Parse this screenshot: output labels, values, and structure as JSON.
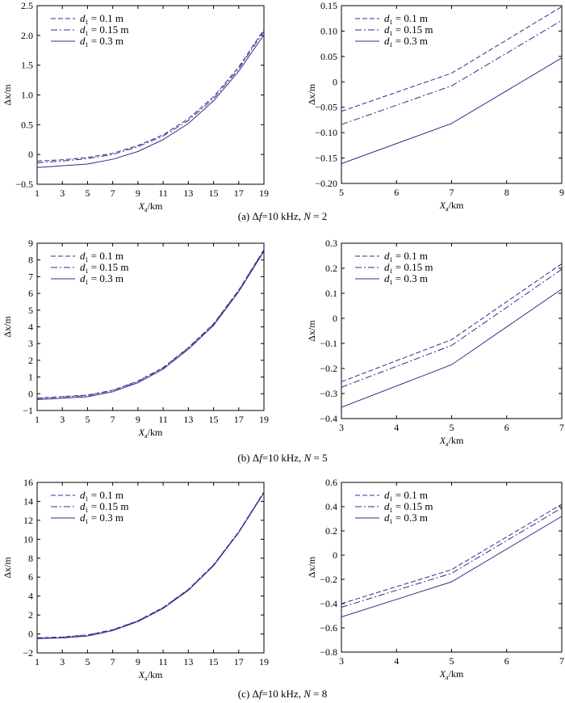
{
  "colors": {
    "series": "#2e2e8c",
    "axis": "#000000"
  },
  "chart_data": [
    {
      "id": "a-left",
      "type": "line",
      "xlabel_main": "X",
      "xlabel_sub": "a",
      "xlabel_unit": "/km",
      "ylabel": "Δx/m",
      "xlim": [
        1,
        19
      ],
      "ylim": [
        -0.5,
        2.5
      ],
      "xticks": [
        1,
        3,
        5,
        7,
        9,
        11,
        13,
        15,
        17,
        19
      ],
      "xtick_labels": [
        "1",
        "3",
        "5",
        "7",
        "9",
        "11",
        "13",
        "15",
        "17",
        "19"
      ],
      "yticks": [
        -0.5,
        0,
        0.5,
        1,
        1.5,
        2,
        2.5
      ],
      "ytick_labels": [
        "−0.5",
        "0",
        "0.5",
        "1.0",
        "1.5",
        "2.0",
        "2.5"
      ],
      "legend_position": "top-left",
      "x": [
        1,
        3,
        5,
        7,
        9,
        11,
        13,
        15,
        17,
        19
      ],
      "series": [
        {
          "name": "d1 = 0.1 m",
          "sym": "d",
          "sub": "1",
          "rest": " = 0.1 m",
          "dash": "dashed",
          "values": [
            -0.11,
            -0.09,
            -0.05,
            0.02,
            0.15,
            0.33,
            0.6,
            0.97,
            1.47,
            2.1
          ]
        },
        {
          "name": "d1 = 0.15 m",
          "sym": "d",
          "sub": "1",
          "rest": " = 0.15 m",
          "dash": "dashdot",
          "values": [
            -0.14,
            -0.11,
            -0.07,
            0.0,
            0.13,
            0.31,
            0.57,
            0.94,
            1.44,
            2.07
          ]
        },
        {
          "name": "d1 = 0.3 m",
          "sym": "d",
          "sub": "1",
          "rest": " = 0.3 m",
          "dash": "solid",
          "values": [
            -0.22,
            -0.19,
            -0.16,
            -0.08,
            0.05,
            0.25,
            0.52,
            0.9,
            1.4,
            2.01
          ]
        }
      ]
    },
    {
      "id": "a-right",
      "type": "line",
      "xlabel_main": "X",
      "xlabel_sub": "a",
      "xlabel_unit": "/km",
      "ylabel": "Δx/m",
      "xlim": [
        5,
        9
      ],
      "ylim": [
        -0.2,
        0.15
      ],
      "xticks": [
        5,
        6,
        7,
        8,
        9
      ],
      "xtick_labels": [
        "5",
        "6",
        "7",
        "8",
        "9"
      ],
      "yticks": [
        -0.2,
        -0.15,
        -0.1,
        -0.05,
        0,
        0.05,
        0.1,
        0.15
      ],
      "ytick_labels": [
        "−0.20",
        "−0.15",
        "−0.10",
        "−0.05",
        "0",
        "0.05",
        "0.10",
        "0.15"
      ],
      "legend_position": "top-left",
      "x": [
        5,
        7,
        9
      ],
      "series": [
        {
          "name": "d1 = 0.1 m",
          "sym": "d",
          "sub": "1",
          "rest": " = 0.1 m",
          "dash": "dashed",
          "values": [
            -0.058,
            0.017,
            0.148
          ]
        },
        {
          "name": "d1 = 0.15 m",
          "sym": "d",
          "sub": "1",
          "rest": " = 0.15 m",
          "dash": "dashdot",
          "values": [
            -0.084,
            -0.008,
            0.121
          ]
        },
        {
          "name": "d1 = 0.3 m",
          "sym": "d",
          "sub": "1",
          "rest": " = 0.3 m",
          "dash": "solid",
          "values": [
            -0.161,
            -0.082,
            0.047
          ]
        }
      ]
    },
    {
      "id": "b-left",
      "type": "line",
      "xlabel_main": "X",
      "xlabel_sub": "a",
      "xlabel_unit": "/km",
      "ylabel": "Δx/m",
      "xlim": [
        1,
        19
      ],
      "ylim": [
        -1,
        9
      ],
      "xticks": [
        1,
        3,
        5,
        7,
        9,
        11,
        13,
        15,
        17,
        19
      ],
      "xtick_labels": [
        "1",
        "3",
        "5",
        "7",
        "9",
        "11",
        "13",
        "15",
        "17",
        "19"
      ],
      "yticks": [
        -1,
        0,
        1,
        2,
        3,
        4,
        5,
        6,
        7,
        8,
        9
      ],
      "ytick_labels": [
        "−1",
        "0",
        "1",
        "2",
        "3",
        "4",
        "5",
        "6",
        "7",
        "8",
        "9"
      ],
      "legend_position": "top-left",
      "x": [
        1,
        3,
        5,
        7,
        9,
        11,
        13,
        15,
        17,
        19
      ],
      "series": [
        {
          "name": "d1 = 0.1 m",
          "sym": "d",
          "sub": "1",
          "rest": " = 0.1 m",
          "dash": "dashed",
          "values": [
            -0.26,
            -0.17,
            -0.08,
            0.21,
            0.76,
            1.57,
            2.76,
            4.18,
            6.2,
            8.62
          ]
        },
        {
          "name": "d1 = 0.15 m",
          "sym": "d",
          "sub": "1",
          "rest": " = 0.15 m",
          "dash": "dashdot",
          "values": [
            -0.28,
            -0.19,
            -0.11,
            0.19,
            0.73,
            1.54,
            2.73,
            4.15,
            6.17,
            8.59
          ]
        },
        {
          "name": "d1 = 0.3 m",
          "sym": "d",
          "sub": "1",
          "rest": " = 0.3 m",
          "dash": "solid",
          "values": [
            -0.35,
            -0.27,
            -0.18,
            0.12,
            0.66,
            1.47,
            2.66,
            4.08,
            6.1,
            8.52
          ]
        }
      ]
    },
    {
      "id": "b-right",
      "type": "line",
      "xlabel_main": "X",
      "xlabel_sub": "a",
      "xlabel_unit": "/km",
      "ylabel": "Δx/m",
      "xlim": [
        3,
        7
      ],
      "ylim": [
        -0.4,
        0.3
      ],
      "xticks": [
        3,
        4,
        5,
        6,
        7
      ],
      "xtick_labels": [
        "3",
        "4",
        "5",
        "6",
        "7"
      ],
      "yticks": [
        -0.4,
        -0.3,
        -0.2,
        -0.1,
        0,
        0.1,
        0.2,
        0.3
      ],
      "ytick_labels": [
        "−0.4",
        "−0.3",
        "−0.2",
        "−0.1",
        "0",
        "0.1",
        "0.2",
        "0.3"
      ],
      "legend_position": "top-left",
      "x": [
        3,
        5,
        7
      ],
      "series": [
        {
          "name": "d1 = 0.1 m",
          "sym": "d",
          "sub": "1",
          "rest": " = 0.1 m",
          "dash": "dashed",
          "values": [
            -0.253,
            -0.085,
            0.218
          ]
        },
        {
          "name": "d1 = 0.15 m",
          "sym": "d",
          "sub": "1",
          "rest": " = 0.15 m",
          "dash": "dashdot",
          "values": [
            -0.275,
            -0.108,
            0.196
          ]
        },
        {
          "name": "d1 = 0.3 m",
          "sym": "d",
          "sub": "1",
          "rest": " = 0.3 m",
          "dash": "solid",
          "values": [
            -0.355,
            -0.185,
            0.117
          ]
        }
      ]
    },
    {
      "id": "c-left",
      "type": "line",
      "xlabel_main": "X",
      "xlabel_sub": "a",
      "xlabel_unit": "/km",
      "ylabel": "Δx/m",
      "xlim": [
        1,
        19
      ],
      "ylim": [
        -2,
        16
      ],
      "xticks": [
        1,
        3,
        5,
        7,
        9,
        11,
        13,
        15,
        17,
        19
      ],
      "xtick_labels": [
        "1",
        "3",
        "5",
        "7",
        "9",
        "11",
        "13",
        "15",
        "17",
        "19"
      ],
      "yticks": [
        -2,
        0,
        2,
        4,
        6,
        8,
        10,
        12,
        14,
        16
      ],
      "ytick_labels": [
        "−2",
        "0",
        "2",
        "4",
        "6",
        "8",
        "10",
        "12",
        "14",
        "16"
      ],
      "legend_position": "top-left",
      "x": [
        1,
        3,
        5,
        7,
        9,
        11,
        13,
        15,
        17,
        19
      ],
      "series": [
        {
          "name": "d1 = 0.1 m",
          "sym": "d",
          "sub": "1",
          "rest": " = 0.1 m",
          "dash": "dashed",
          "values": [
            -0.4,
            -0.32,
            -0.1,
            0.45,
            1.4,
            2.8,
            4.7,
            7.3,
            10.8,
            15.0
          ]
        },
        {
          "name": "d1 = 0.15 m",
          "sym": "d",
          "sub": "1",
          "rest": " = 0.15 m",
          "dash": "dashdot",
          "values": [
            -0.43,
            -0.35,
            -0.13,
            0.42,
            1.37,
            2.77,
            4.67,
            7.27,
            10.77,
            14.97
          ]
        },
        {
          "name": "d1 = 0.3 m",
          "sym": "d",
          "sub": "1",
          "rest": " = 0.3 m",
          "dash": "solid",
          "values": [
            -0.5,
            -0.42,
            -0.22,
            0.35,
            1.3,
            2.7,
            4.6,
            7.2,
            10.7,
            14.9
          ]
        }
      ]
    },
    {
      "id": "c-right",
      "type": "line",
      "xlabel_main": "X",
      "xlabel_sub": "a",
      "xlabel_unit": "/km",
      "ylabel": "Δx/m",
      "xlim": [
        3,
        7
      ],
      "ylim": [
        -0.8,
        0.6
      ],
      "xticks": [
        3,
        4,
        5,
        6,
        7
      ],
      "xtick_labels": [
        "3",
        "4",
        "5",
        "6",
        "7"
      ],
      "yticks": [
        -0.8,
        -0.6,
        -0.4,
        -0.2,
        0,
        0.2,
        0.4,
        0.6
      ],
      "ytick_labels": [
        "−0.8",
        "−0.6",
        "−0.4",
        "−0.2",
        "0",
        "0.2",
        "0.4",
        "0.6"
      ],
      "legend_position": "top-left",
      "x": [
        3,
        5,
        7
      ],
      "series": [
        {
          "name": "d1 = 0.1 m",
          "sym": "d",
          "sub": "1",
          "rest": " = 0.1 m",
          "dash": "dashed",
          "values": [
            -0.4,
            -0.12,
            0.42
          ]
        },
        {
          "name": "d1 = 0.15 m",
          "sym": "d",
          "sub": "1",
          "rest": " = 0.15 m",
          "dash": "dashdot",
          "values": [
            -0.43,
            -0.15,
            0.39
          ]
        },
        {
          "name": "d1 = 0.3 m",
          "sym": "d",
          "sub": "1",
          "rest": " = 0.3 m",
          "dash": "solid",
          "values": [
            -0.51,
            -0.22,
            0.32
          ]
        }
      ]
    }
  ],
  "captions": [
    {
      "prefix": "(a) Δ",
      "f": "f",
      "mid": "=10 kHz,  ",
      "n": "N",
      "suffix": " = 2"
    },
    {
      "prefix": "(b) Δ",
      "f": "f",
      "mid": "=10 kHz,  ",
      "n": "N",
      "suffix": " = 5"
    },
    {
      "prefix": "(c) Δ",
      "f": "f",
      "mid": "=10 kHz,  ",
      "n": "N",
      "suffix": " = 8"
    }
  ]
}
